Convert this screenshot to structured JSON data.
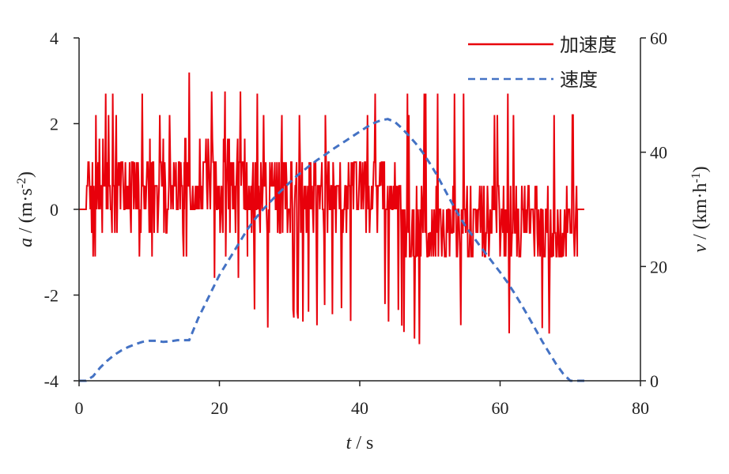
{
  "chart_data": {
    "type": "line",
    "xlabel": {
      "var": "t",
      "unit": " / s"
    },
    "ylabel_left": {
      "var": "a",
      "unit": " / (m·s",
      "sup": "-2",
      "close": ")"
    },
    "ylabel_right": {
      "var": "v",
      "unit": " / (km·h",
      "sup": "-1",
      "close": ")"
    },
    "xlim": [
      0,
      80
    ],
    "ylim_left": [
      -4,
      4
    ],
    "ylim_right": [
      0,
      60
    ],
    "x_ticks": [
      "0",
      "20",
      "40",
      "60",
      "80"
    ],
    "y_left_ticks": [
      "-4",
      "-2",
      "0",
      "2",
      "4"
    ],
    "y_right_ticks": [
      "0",
      "20",
      "40",
      "60"
    ],
    "grid": false,
    "legend_position": "top-right",
    "colors": {
      "acceleration": "#e8000b",
      "speed": "#4472c4",
      "axes": "#222222"
    },
    "series": [
      {
        "name": "加速度",
        "axis": "left",
        "style": "solid",
        "segments": [
          {
            "x": [
              0,
              1
            ],
            "level": 0
          },
          {
            "x": [
              1,
              15
            ],
            "base": 0.5,
            "spread": [
              -1.6,
              2.7
            ]
          },
          {
            "x": [
              15,
              24
            ],
            "base": 0.6,
            "spread": [
              -1.6,
              3.3
            ]
          },
          {
            "x": [
              24,
              46
            ],
            "base": 0.4,
            "spread": [
              -2.8,
              2.7
            ]
          },
          {
            "x": [
              46,
              71
            ],
            "base": -0.4,
            "spread": [
              -3.3,
              2.7
            ]
          },
          {
            "x": [
              71,
              72
            ],
            "level": 0
          }
        ]
      },
      {
        "name": "速度",
        "axis": "right",
        "style": "dashed",
        "x": [
          0,
          1,
          2,
          3,
          4,
          5,
          6,
          7,
          8,
          9,
          10,
          11,
          12,
          13,
          14,
          15,
          15.7,
          16.5,
          17,
          18,
          19,
          20,
          21,
          22,
          23,
          24,
          25,
          26,
          27,
          28,
          29,
          30,
          31,
          32,
          33,
          34,
          35,
          36,
          37,
          38,
          39,
          40,
          41,
          42,
          43,
          44,
          45,
          46,
          47,
          48,
          49,
          50,
          51,
          52,
          53,
          54,
          55,
          56,
          57,
          58,
          59,
          60,
          61,
          62,
          63,
          64,
          65,
          66,
          67,
          68,
          69,
          70,
          72
        ],
        "y": [
          0,
          0,
          0.8,
          2.3,
          3.5,
          4.5,
          5.3,
          5.9,
          6.4,
          6.8,
          7.0,
          7.0,
          6.8,
          6.9,
          7.1,
          7.1,
          7.1,
          9.5,
          11.0,
          13.5,
          16.0,
          18.5,
          20.5,
          22.5,
          24.5,
          26.5,
          28.2,
          29.7,
          31.0,
          32.3,
          33.5,
          34.7,
          35.8,
          36.8,
          37.8,
          38.7,
          39.5,
          40.4,
          41.2,
          42.0,
          42.8,
          43.6,
          44.4,
          45.1,
          45.6,
          45.8,
          45.3,
          44.2,
          42.9,
          41.5,
          39.9,
          38.0,
          36.0,
          33.7,
          31.4,
          29.2,
          27.2,
          25.5,
          23.8,
          22.2,
          20.6,
          19.0,
          17.3,
          15.4,
          13.4,
          11.3,
          9.1,
          6.9,
          4.9,
          2.9,
          1.2,
          0,
          0
        ]
      }
    ]
  }
}
